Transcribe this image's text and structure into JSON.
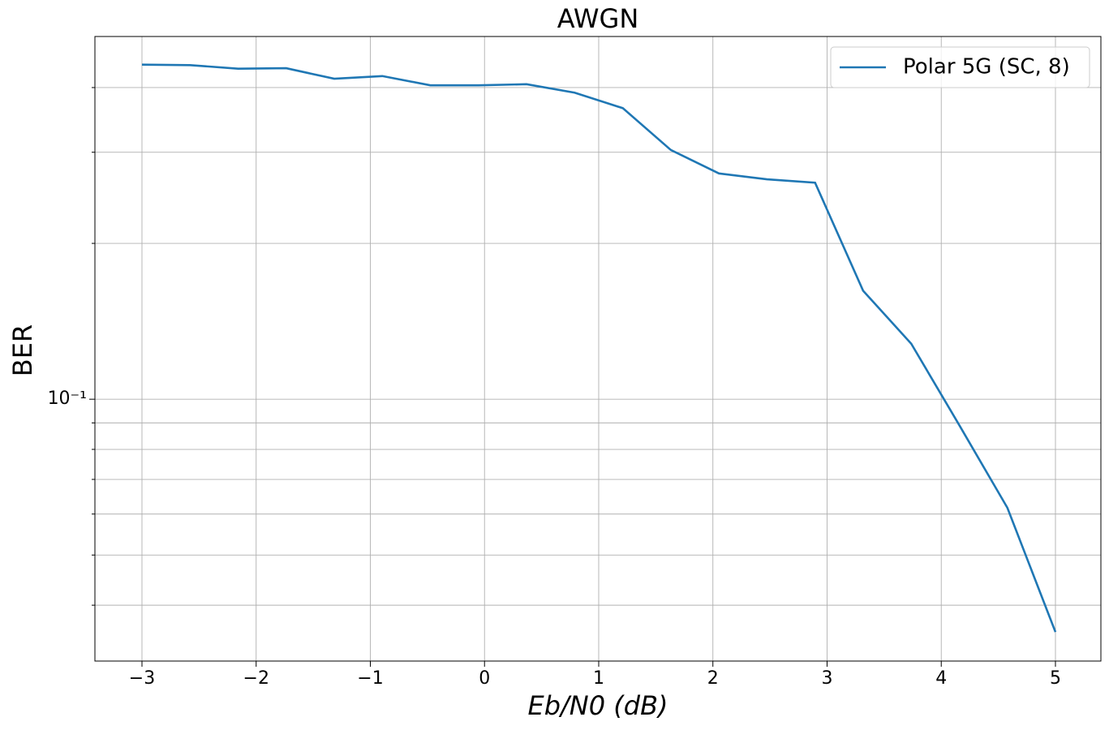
{
  "chart_data": {
    "type": "line",
    "title": "AWGN",
    "xlabel": "Eb/N0 (dB)",
    "ylabel": "BER",
    "x": [
      -3,
      -2.579,
      -2.158,
      -1.737,
      -1.316,
      -0.895,
      -0.474,
      -0.053,
      0.368,
      0.789,
      1.211,
      1.632,
      2.053,
      2.474,
      2.895,
      3.316,
      3.737,
      4.158,
      4.579,
      5
    ],
    "series": [
      {
        "name": "Polar 5G (SC, 8)",
        "color": "#1f77b4",
        "values": [
          0.443,
          0.442,
          0.435,
          0.436,
          0.416,
          0.421,
          0.404,
          0.404,
          0.406,
          0.391,
          0.365,
          0.303,
          0.273,
          0.266,
          0.262,
          0.162,
          0.128,
          0.0891,
          0.0617,
          0.0355
        ]
      }
    ],
    "xlim": [
      -3.412,
      5.398
    ],
    "xticks": [
      {
        "value": -3,
        "label": "−3"
      },
      {
        "value": -2,
        "label": "−2"
      },
      {
        "value": -1,
        "label": "−1"
      },
      0,
      1,
      2,
      3,
      4,
      5
    ],
    "ylim": [
      0.0312,
      0.502
    ],
    "yscale": "log",
    "yticks": [
      {
        "value": 0.1,
        "label": "10⁻¹"
      }
    ],
    "yminorticks": [
      0.04,
      0.05,
      0.06,
      0.07,
      0.08,
      0.09,
      0.2,
      0.3,
      0.4
    ],
    "grid": true,
    "legend": "upper right"
  }
}
